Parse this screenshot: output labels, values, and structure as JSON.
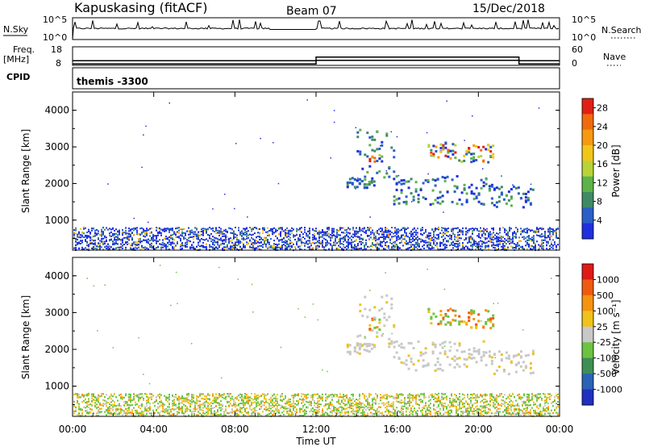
{
  "header": {
    "station": "Kapuskasing (fitACF)",
    "beam": "Beam 07",
    "date": "15/Dec/2018"
  },
  "strip": {
    "nsky_label": "N.Sky",
    "nsky_ticks": [
      "10^5",
      "10^0"
    ],
    "nsearch_label": "N.Search",
    "nsearch_ticks": [
      "10^5",
      "10^0"
    ],
    "freq_label": "Freq.",
    "freq_unit": "[MHz]",
    "freq_ticks": [
      "18",
      "8"
    ],
    "nave_label": "Nave",
    "nave_ticks": [
      "60",
      "0"
    ],
    "cpid_label": "CPID",
    "cpid_value": "themis -3300"
  },
  "chart_data": [
    {
      "type": "heatmap",
      "name": "power",
      "ylabel": "Slant Range [km]",
      "xlabel": "Time UT",
      "xlim_hours": [
        0,
        24
      ],
      "ylim": [
        180,
        4500
      ],
      "y_ticks": [
        "1000",
        "2000",
        "3000",
        "4000"
      ],
      "x_ticks": [
        "00:00",
        "04:00",
        "08:00",
        "12:00",
        "16:00",
        "20:00",
        "00:00"
      ],
      "colorbar": {
        "label": "Power [dB]",
        "ticks": [
          "4",
          "8",
          "12",
          "16",
          "20",
          "24",
          "28"
        ],
        "colors": [
          "#1f2fe0",
          "#2a5fc8",
          "#3f8a64",
          "#5db34a",
          "#b8d23a",
          "#f2c619",
          "#f59a10",
          "#f06a0e",
          "#e02015"
        ]
      }
    },
    {
      "type": "heatmap",
      "name": "velocity",
      "ylabel": "Slant Range [km]",
      "xlabel": "Time UT",
      "xlim_hours": [
        0,
        24
      ],
      "ylim": [
        180,
        4500
      ],
      "y_ticks": [
        "1000",
        "2000",
        "3000",
        "4000"
      ],
      "x_ticks": [
        "00:00",
        "04:00",
        "08:00",
        "12:00",
        "16:00",
        "20:00",
        "00:00"
      ],
      "colorbar": {
        "label": "Velocity [m s⁻¹]",
        "ticks": [
          "1000",
          "500",
          "100",
          "25",
          "-25",
          "-100",
          "-500",
          "-1000"
        ],
        "colors": [
          "#2030c0",
          "#2a63b6",
          "#3e8f55",
          "#6cc341",
          "#c8c8c8",
          "#f0c21a",
          "#f5920f",
          "#ef5a10",
          "#e01a14"
        ]
      }
    }
  ],
  "freq_series_hours": [
    0,
    12,
    12,
    22,
    22,
    24
  ],
  "freq_series_mhz": [
    10.5,
    10.5,
    12.5,
    12.5,
    10.5,
    10.5
  ]
}
